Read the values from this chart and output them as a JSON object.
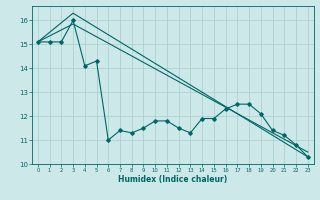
{
  "xlabel": "Humidex (Indice chaleur)",
  "bg_color": "#cce8e8",
  "grid_color": "#aacccc",
  "line_color": "#006666",
  "xlim": [
    -0.5,
    23.5
  ],
  "ylim": [
    10,
    16.6
  ],
  "yticks": [
    10,
    11,
    12,
    13,
    14,
    15,
    16
  ],
  "xticks": [
    0,
    1,
    2,
    3,
    4,
    5,
    6,
    7,
    8,
    9,
    10,
    11,
    12,
    13,
    14,
    15,
    16,
    17,
    18,
    19,
    20,
    21,
    22,
    23
  ],
  "line1_x": [
    0,
    1,
    2,
    3,
    4,
    5,
    6,
    7,
    8,
    9,
    10,
    11,
    12,
    13,
    14,
    15,
    16,
    17,
    18,
    19,
    20,
    21,
    22,
    23
  ],
  "line1_y": [
    15.1,
    15.1,
    15.1,
    16.0,
    14.1,
    14.3,
    11.0,
    11.4,
    11.3,
    11.5,
    11.8,
    11.8,
    11.5,
    11.3,
    11.9,
    11.9,
    12.3,
    12.5,
    12.5,
    12.1,
    11.4,
    11.2,
    10.8,
    10.3
  ],
  "line2_x": [
    0,
    3,
    23
  ],
  "line2_y": [
    15.1,
    16.3,
    10.3
  ],
  "line3_x": [
    0,
    3,
    23
  ],
  "line3_y": [
    15.1,
    15.85,
    10.5
  ]
}
